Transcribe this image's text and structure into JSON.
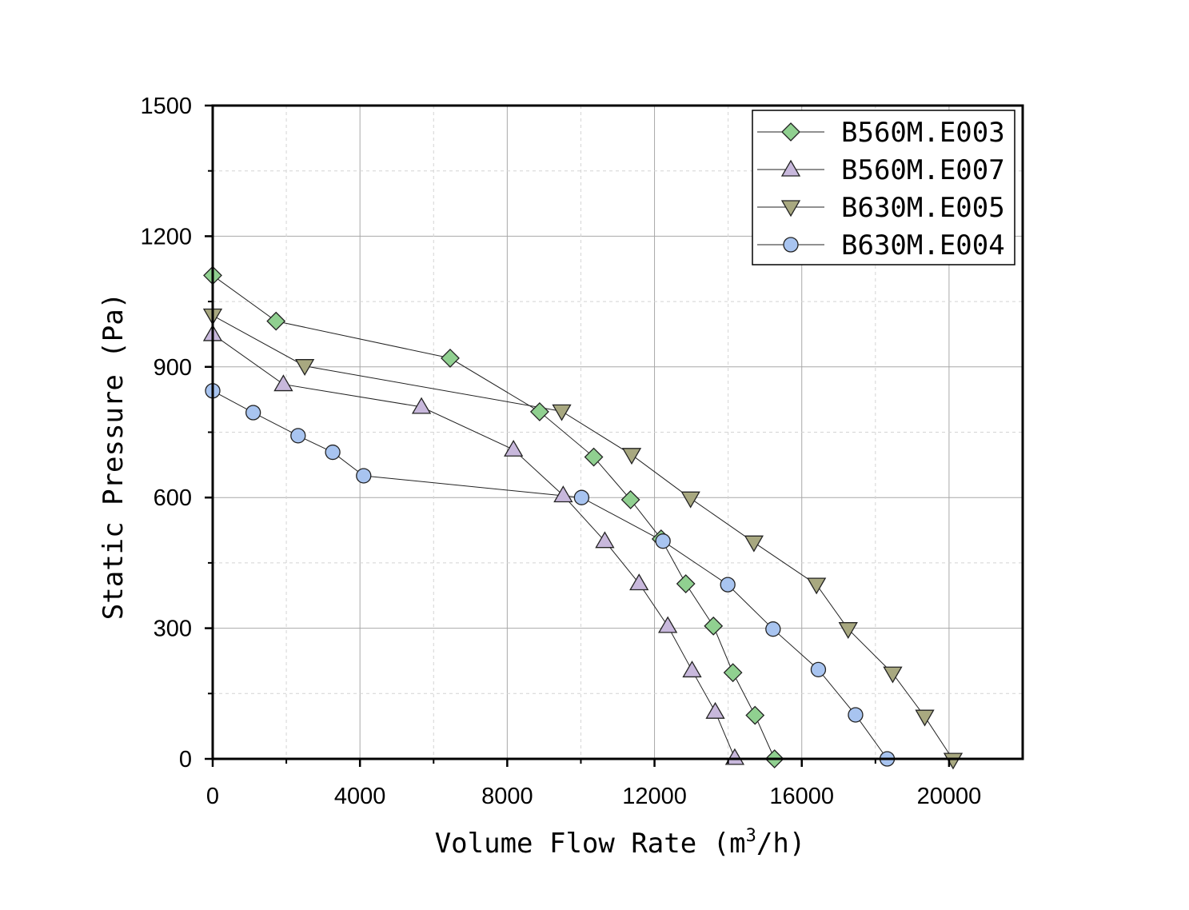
{
  "chart_data": {
    "type": "line",
    "title": "",
    "xlabel": "Volume Flow Rate",
    "xlabel_unit_prefix": "(m",
    "xlabel_unit_sup": "3",
    "xlabel_unit_suffix": "/h)",
    "ylabel": "Static Pressure (Pa)",
    "xlim": [
      0,
      22000
    ],
    "ylim": [
      0,
      1500
    ],
    "xticks": [
      0,
      4000,
      8000,
      12000,
      16000,
      20000
    ],
    "xtick_labels": [
      "0",
      "4000",
      "8000",
      "12000",
      "16000",
      "20000"
    ],
    "yticks": [
      0,
      300,
      600,
      900,
      1200,
      1500
    ],
    "ytick_labels": [
      "0",
      "300",
      "600",
      "900",
      "1200",
      "1500"
    ],
    "grid": true,
    "legend_position": "top-right",
    "series": [
      {
        "name": "B560M.E003",
        "marker": "diamond",
        "color": "#90d090",
        "x": [
          0,
          1720,
          6450,
          8880,
          10350,
          11350,
          12180,
          12850,
          13600,
          14130,
          14730,
          15260
        ],
        "y": [
          1110,
          1005,
          920,
          797,
          693,
          595,
          505,
          402,
          305,
          198,
          100,
          0
        ]
      },
      {
        "name": "B560M.E007",
        "marker": "triangle-up",
        "color": "#c8b8dc",
        "x": [
          0,
          1920,
          5670,
          8170,
          9520,
          10650,
          11580,
          12360,
          13020,
          13650,
          14180
        ],
        "y": [
          975,
          860,
          808,
          710,
          605,
          500,
          403,
          305,
          203,
          108,
          2
        ]
      },
      {
        "name": "B630M.E005",
        "marker": "triangle-down",
        "color": "#a8a880",
        "x": [
          0,
          2500,
          9480,
          11380,
          12980,
          14700,
          16400,
          17260,
          18470,
          19340,
          20110
        ],
        "y": [
          1018,
          902,
          798,
          698,
          598,
          497,
          400,
          298,
          196,
          97,
          -2
        ]
      },
      {
        "name": "B630M.E004",
        "marker": "circle",
        "color": "#a8c4f0",
        "x": [
          0,
          1100,
          2320,
          3260,
          4100,
          10020,
          12230,
          13990,
          15220,
          16450,
          17460,
          18320
        ],
        "y": [
          845,
          795,
          742,
          704,
          650,
          600,
          500,
          400,
          298,
          205,
          101,
          0
        ]
      }
    ]
  }
}
